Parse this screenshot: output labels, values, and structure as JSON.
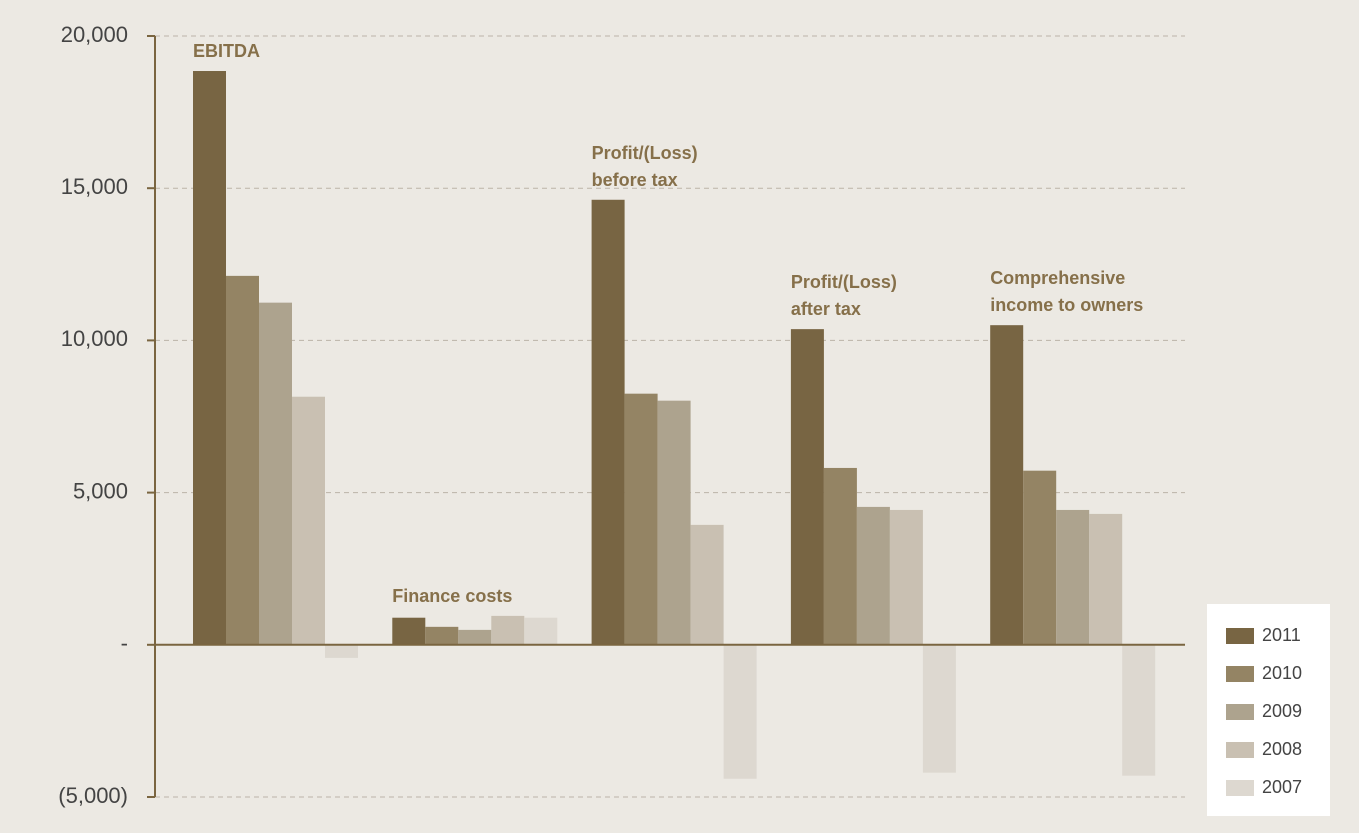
{
  "chart_data": {
    "type": "bar",
    "categories": [
      "EBITDA",
      "Finance costs",
      "Profit/(Loss) before tax",
      "Profit/(Loss) after tax",
      "Comprehensive income to owners"
    ],
    "series": [
      {
        "name": "2011",
        "color": "#786543",
        "values": [
          18850,
          890,
          14620,
          10370,
          10500
        ]
      },
      {
        "name": "2010",
        "color": "#948464",
        "values": [
          12120,
          590,
          8250,
          5810,
          5720
        ]
      },
      {
        "name": "2009",
        "color": "#ada38e",
        "values": [
          11240,
          490,
          8020,
          4530,
          4430
        ]
      },
      {
        "name": "2008",
        "color": "#c9c0b2",
        "values": [
          8150,
          950,
          3940,
          4430,
          4300
        ]
      },
      {
        "name": "2007",
        "color": "#ddd8d0",
        "values": [
          -430,
          890,
          -4400,
          -4200,
          -4300
        ]
      }
    ],
    "ylim": [
      -5000,
      20000
    ],
    "yticks": [
      {
        "value": -5000,
        "label": "(5,000)"
      },
      {
        "value": 0,
        "label": "-"
      },
      {
        "value": 5000,
        "label": "5,000"
      },
      {
        "value": 10000,
        "label": "10,000"
      },
      {
        "value": 15000,
        "label": "15,000"
      },
      {
        "value": 20000,
        "label": "20,000"
      }
    ],
    "grid": true,
    "legend": "lower right"
  }
}
